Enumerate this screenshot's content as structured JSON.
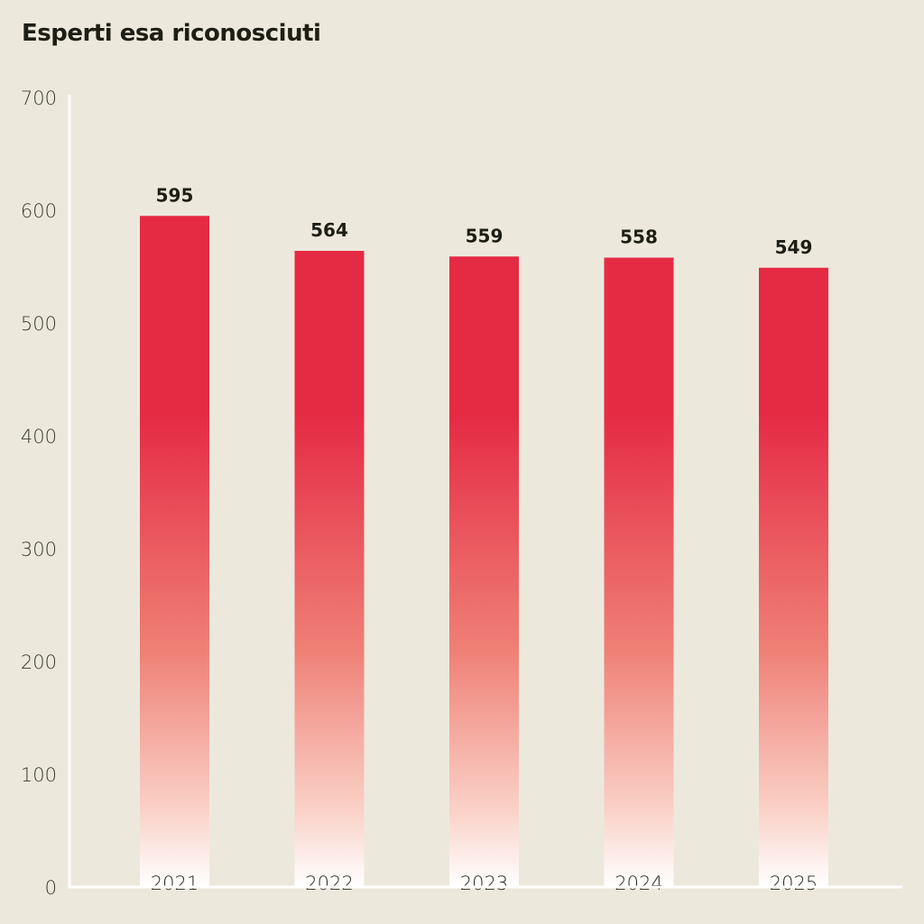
{
  "chart_data": {
    "type": "bar",
    "title": "Esperti esa riconosciuti",
    "xlabel": "",
    "ylabel": "",
    "categories": [
      "2021",
      "2022",
      "2023",
      "2024",
      "2025"
    ],
    "values": [
      595,
      564,
      559,
      558,
      549
    ],
    "ylim": [
      0,
      700
    ],
    "yticks": [
      0,
      100,
      200,
      300,
      400,
      500,
      600,
      700
    ],
    "grid": false,
    "data_labels": true,
    "colors": {
      "bar_top": "#e52a44",
      "bar_bottom": "#ffffff",
      "background": "#ece9dc",
      "axis": "#ffffff"
    }
  }
}
